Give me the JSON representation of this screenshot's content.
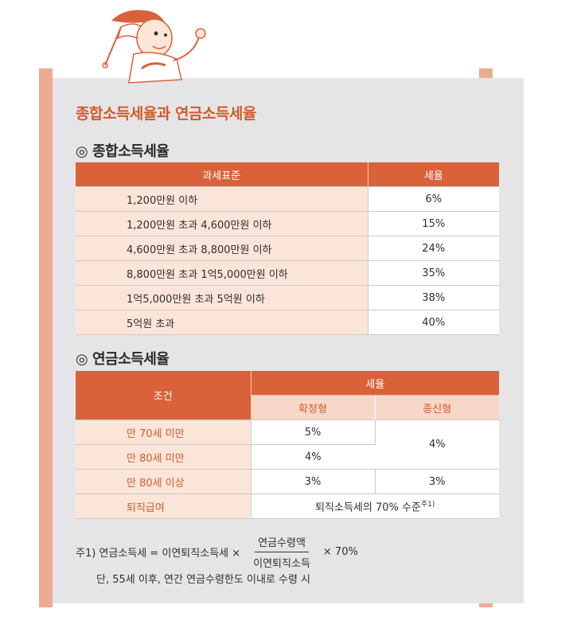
{
  "main_title": "종합소득세율과 연금소득세율",
  "section1": {
    "title": "◎ 종합소득세율",
    "headers": [
      "과세표준",
      "세율"
    ],
    "rows": [
      {
        "cond": "1,200만원 이하",
        "rate": "6%"
      },
      {
        "cond": "1,200만원 초과 4,600만원 이하",
        "rate": "15%"
      },
      {
        "cond": "4,600만원 초과 8,800만원 이하",
        "rate": "24%"
      },
      {
        "cond": "8,800만원 초과 1억5,000만원 이하",
        "rate": "35%"
      },
      {
        "cond": "1억5,000만원 초과 5억원 이하",
        "rate": "38%"
      },
      {
        "cond": "5억원 초과",
        "rate": "40%"
      }
    ]
  },
  "section2": {
    "title": "◎ 연금소득세율",
    "header_cond": "조건",
    "header_rate": "세율",
    "header_sub": [
      "확정형",
      "종신형"
    ],
    "rows": [
      {
        "cond": "만 70세 미만",
        "fixed": "5%"
      },
      {
        "cond": "만 80세 미만",
        "fixed": "4%"
      },
      {
        "cond": "만 80세 이상",
        "fixed": "3%",
        "life": "3%"
      },
      {
        "cond": "퇴직급여",
        "merged": "퇴직소득세의 70% 수준",
        "merged_sup": "주1)"
      }
    ],
    "life_merged": "4%"
  },
  "note": {
    "prefix": "주1) 연금소득세 = 이연퇴직소득세 ×",
    "numerator": "연금수령액",
    "denominator": "이연퇴직소득",
    "suffix": "× 70%",
    "line2": "단, 55세 이후, 연간 연금수령한도 이내로 수령 시"
  },
  "colors": {
    "accent": "#d9623a",
    "light_accent": "#fbe5d9",
    "frame": "#ecac92",
    "panel": "#e5e5e7"
  }
}
